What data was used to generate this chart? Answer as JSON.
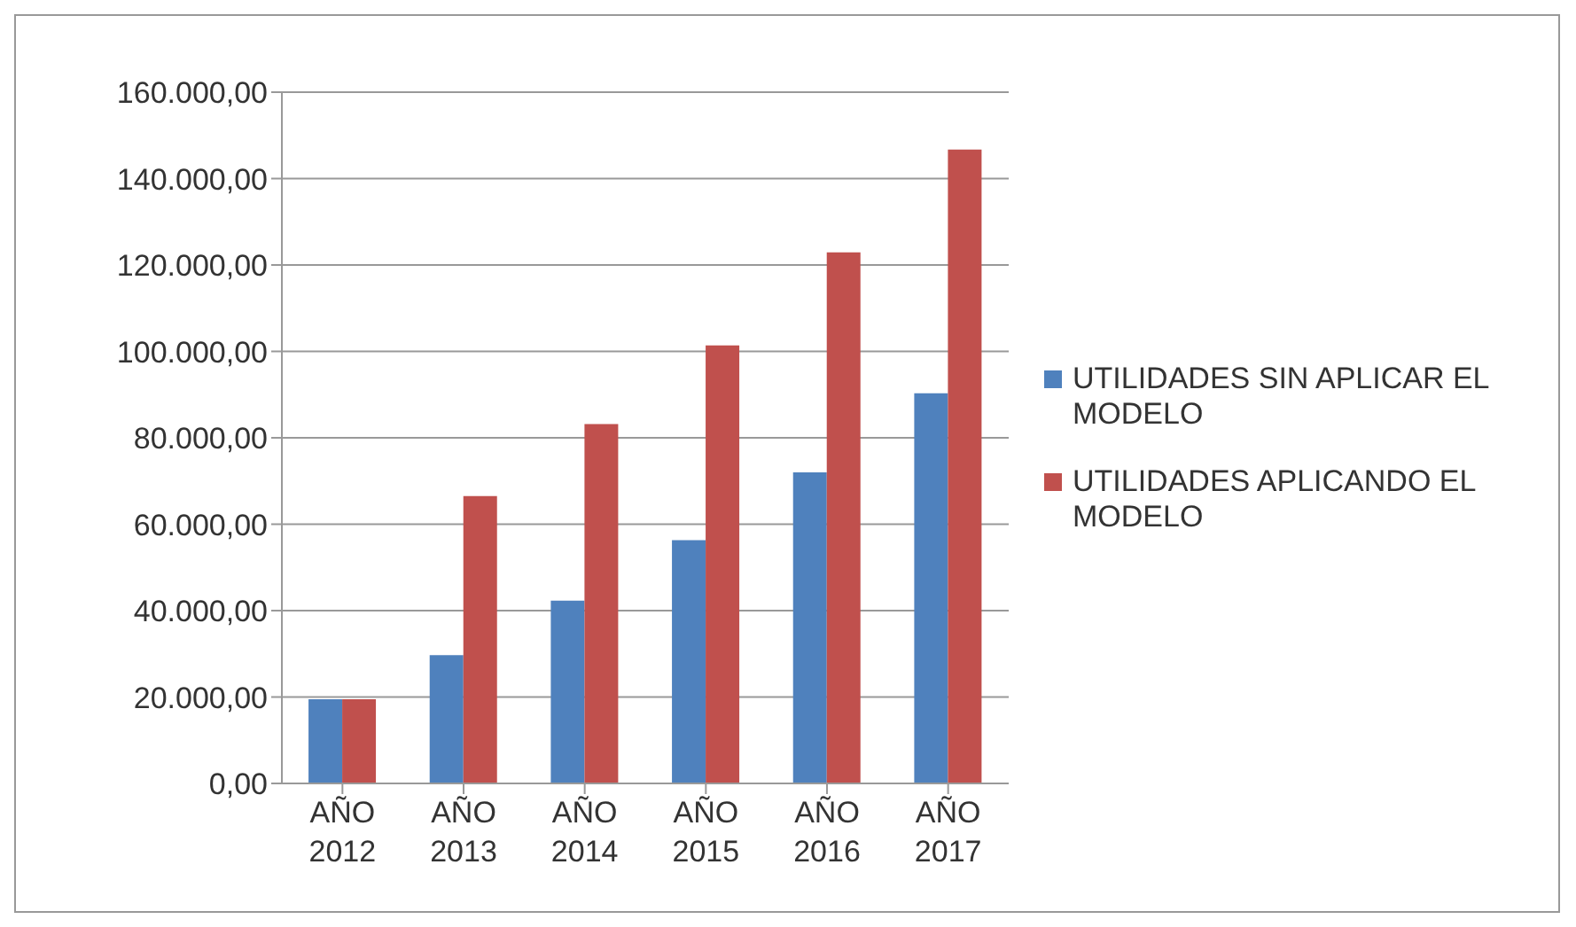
{
  "chart_data": {
    "type": "bar",
    "categories": [
      "AÑO 2012",
      "AÑO 2013",
      "AÑO 2014",
      "AÑO 2015",
      "AÑO 2016",
      "AÑO 2017"
    ],
    "series": [
      {
        "name": "UTILIDADES SIN APLICAR EL MODELO",
        "color": "#4f81bd",
        "values": [
          19500,
          29700,
          42300,
          56300,
          72000,
          90300
        ]
      },
      {
        "name": "UTILIDADES APLICANDO EL MODELO",
        "color": "#c0504d",
        "values": [
          19500,
          66500,
          83200,
          101400,
          122900,
          146700
        ]
      }
    ],
    "ylim": [
      0,
      160000
    ],
    "yticks": [
      {
        "value": 0,
        "label": "0,00"
      },
      {
        "value": 20000,
        "label": "20.000,00"
      },
      {
        "value": 40000,
        "label": "40.000,00"
      },
      {
        "value": 60000,
        "label": "60.000,00"
      },
      {
        "value": 80000,
        "label": "80.000,00"
      },
      {
        "value": 100000,
        "label": "100.000,00"
      },
      {
        "value": 120000,
        "label": "120.000,00"
      },
      {
        "value": 140000,
        "label": "140.000,00"
      },
      {
        "value": 160000,
        "label": "160.000,00"
      }
    ],
    "grid": "y",
    "legend": "right"
  }
}
